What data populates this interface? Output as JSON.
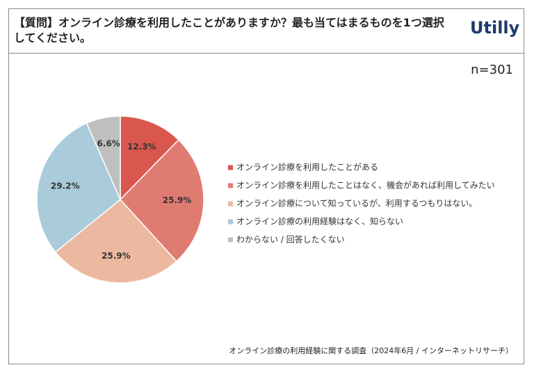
{
  "header": {
    "title": "【質問】オンライン診療を利用したことがありますか？最も当てはまるものを1つ選択してください。",
    "logo": "Utilly"
  },
  "chart_data": {
    "type": "pie",
    "subtitle": "n=301",
    "categories": [
      "オンライン診療を利用したことがある",
      "オンライン診療を利用したことはなく、機会があれば利用してみたい",
      "オンライン診療について知っているが、利用するつもりはない。",
      "オンライン診療の利用経験はなく、知らない",
      "わからない / 回答したくない"
    ],
    "values": [
      12.3,
      25.9,
      25.9,
      29.2,
      6.6
    ],
    "value_labels": [
      "12.3%",
      "25.9%",
      "25.9%",
      "29.2%",
      "6.6%"
    ],
    "colors": [
      "#d9574c",
      "#e07b72",
      "#ecb9a0",
      "#a9cbda",
      "#bfbfbf"
    ],
    "legend": "right",
    "source": "オンライン診療の利用経験に関する調査（2024年6月 / インターネットリサーチ）"
  }
}
